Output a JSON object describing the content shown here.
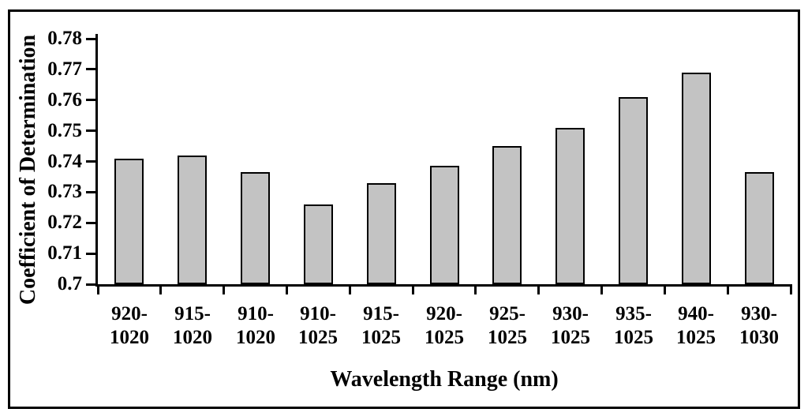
{
  "figure": {
    "background": "#ffffff",
    "frame_color": "#000000",
    "text_color": "#000000"
  },
  "chart_data": {
    "type": "bar",
    "title": "",
    "xlabel": "Wavelength Range (nm)",
    "ylabel": "Coefficient of Determination",
    "categories": [
      "920-1020",
      "915-1020",
      "910-1020",
      "910-1025",
      "915-1025",
      "920-1025",
      "925-1025",
      "930-1025",
      "935-1025",
      "940-1025",
      "930-1030"
    ],
    "values": [
      0.741,
      0.742,
      0.7365,
      0.726,
      0.733,
      0.7385,
      0.745,
      0.751,
      0.761,
      0.769,
      0.7365
    ],
    "ylim": [
      0.7,
      0.78
    ],
    "ytick_step": 0.01,
    "ytick_labels": [
      "0.7",
      "0.71",
      "0.72",
      "0.73",
      "0.74",
      "0.75",
      "0.76",
      "0.77",
      "0.78"
    ],
    "bar_fill": "#c3c3c3",
    "bar_border": "#000000",
    "grid": false,
    "legend": "none"
  }
}
